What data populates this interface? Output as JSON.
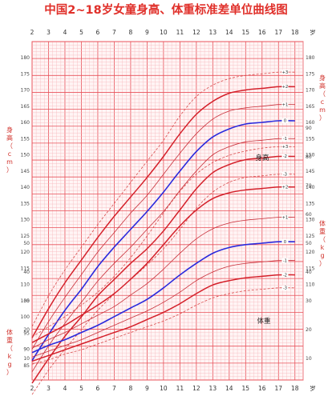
{
  "title": "中国2~18岁女童身高、体重标准差单位曲线图",
  "colors": {
    "grid_major": "#e8525a",
    "grid_minor": "#f6b8bc",
    "title": "#e0302a",
    "median": "#2a2add",
    "sd2": "#d4202a",
    "sd1": "#c8303a",
    "sd3": "#d84a4a"
  },
  "chart_data": [
    {
      "type": "line",
      "title": "身高",
      "ylabel": "身高（cm）",
      "xlabel": "岁",
      "x_ticks": [
        "2",
        "3",
        "4",
        "5",
        "6",
        "7",
        "8",
        "9",
        "10",
        "11",
        "12",
        "13",
        "14",
        "15",
        "16",
        "17",
        "18"
      ],
      "ylim": [
        80,
        185
      ],
      "y_ticks": [
        85,
        90,
        95,
        100,
        105,
        110,
        115,
        120,
        125,
        130,
        135,
        140,
        145,
        150,
        155,
        160,
        165,
        170,
        175,
        180
      ],
      "x": [
        2,
        3,
        4,
        5,
        6,
        7,
        8,
        9,
        10,
        11,
        12,
        13,
        14,
        15,
        16,
        17,
        18
      ],
      "series": [
        {
          "name": "+3",
          "values": [
            97.0,
            106.5,
            114.5,
            121.5,
            128.5,
            135.0,
            141.5,
            148.0,
            154.5,
            162.0,
            168.0,
            171.5,
            173.5,
            174.5,
            175.0,
            175.5,
            175.5
          ]
        },
        {
          "name": "+2",
          "values": [
            93.5,
            102.5,
            110.5,
            117.5,
            124.5,
            131.0,
            137.0,
            143.0,
            149.5,
            156.5,
            162.5,
            166.5,
            169.0,
            170.0,
            170.5,
            171.0,
            171.0
          ]
        },
        {
          "name": "+1",
          "values": [
            90.0,
            98.5,
            106.0,
            113.0,
            120.0,
            126.0,
            132.0,
            137.5,
            144.0,
            150.5,
            156.5,
            161.0,
            163.5,
            164.5,
            165.0,
            165.5,
            165.5
          ]
        },
        {
          "name": "0",
          "values": [
            86.5,
            94.5,
            102.0,
            108.5,
            115.5,
            121.5,
            127.0,
            132.5,
            138.5,
            145.0,
            151.0,
            155.5,
            158.0,
            159.5,
            160.0,
            160.5,
            160.5
          ]
        },
        {
          "name": "-1",
          "values": [
            83.0,
            91.0,
            98.0,
            104.5,
            111.0,
            116.5,
            121.5,
            127.0,
            132.5,
            139.0,
            145.0,
            150.0,
            152.5,
            154.0,
            154.5,
            155.0,
            155.0
          ]
        },
        {
          "name": "-2",
          "values": [
            79.5,
            87.0,
            94.0,
            100.0,
            106.5,
            111.5,
            116.5,
            121.0,
            126.5,
            133.0,
            139.5,
            144.5,
            147.0,
            148.5,
            149.0,
            149.5,
            149.5
          ]
        },
        {
          "name": "-3",
          "values": [
            76.0,
            83.5,
            90.0,
            96.0,
            102.0,
            107.0,
            111.5,
            116.0,
            121.0,
            127.0,
            133.5,
            138.5,
            141.5,
            143.0,
            143.5,
            144.0,
            144.0
          ]
        }
      ]
    },
    {
      "type": "line",
      "title": "体重",
      "ylabel": "体重（kg）",
      "xlabel": "岁",
      "ylim": [
        5,
        90
      ],
      "y_ticks": [
        10,
        20,
        30,
        40,
        50,
        60,
        70,
        80,
        90
      ],
      "x": [
        2,
        3,
        4,
        5,
        6,
        7,
        8,
        9,
        10,
        11,
        12,
        13,
        14,
        15,
        16,
        17,
        18
      ],
      "series": [
        {
          "name": "+3",
          "values": [
            17.5,
            21.0,
            24.5,
            28.5,
            33.0,
            38.5,
            45.0,
            52.5,
            60.5,
            68.0,
            74.0,
            78.0,
            80.5,
            82.0,
            83.0,
            83.5,
            83.5
          ]
        },
        {
          "name": "+2",
          "values": [
            15.5,
            18.5,
            21.5,
            25.0,
            28.5,
            32.5,
            37.5,
            43.0,
            49.5,
            56.0,
            61.5,
            65.5,
            67.5,
            68.5,
            69.0,
            69.5,
            69.5
          ]
        },
        {
          "name": "+1",
          "values": [
            13.5,
            16.5,
            19.0,
            22.0,
            25.0,
            28.0,
            32.0,
            36.0,
            41.0,
            46.5,
            51.5,
            55.0,
            57.0,
            58.0,
            58.5,
            59.0,
            59.0
          ]
        },
        {
          "name": "0",
          "values": [
            12.0,
            14.5,
            16.5,
            19.0,
            21.5,
            24.5,
            27.5,
            30.5,
            34.5,
            39.0,
            43.0,
            46.5,
            48.5,
            49.5,
            50.0,
            50.5,
            50.5
          ]
        },
        {
          "name": "-1",
          "values": [
            10.5,
            12.5,
            14.5,
            16.5,
            19.0,
            21.5,
            24.0,
            26.5,
            29.5,
            33.0,
            37.0,
            40.0,
            42.0,
            43.0,
            43.5,
            44.0,
            44.0
          ]
        },
        {
          "name": "-2",
          "values": [
            9.0,
            11.0,
            13.0,
            15.0,
            17.0,
            19.0,
            21.0,
            23.5,
            26.0,
            29.0,
            32.5,
            35.5,
            37.0,
            38.0,
            38.5,
            39.0,
            39.0
          ]
        },
        {
          "name": "-3",
          "values": [
            8.0,
            9.5,
            11.5,
            13.0,
            15.0,
            17.0,
            19.0,
            21.0,
            23.0,
            25.5,
            28.5,
            31.0,
            32.5,
            33.5,
            34.0,
            34.5,
            34.5
          ]
        }
      ]
    }
  ]
}
